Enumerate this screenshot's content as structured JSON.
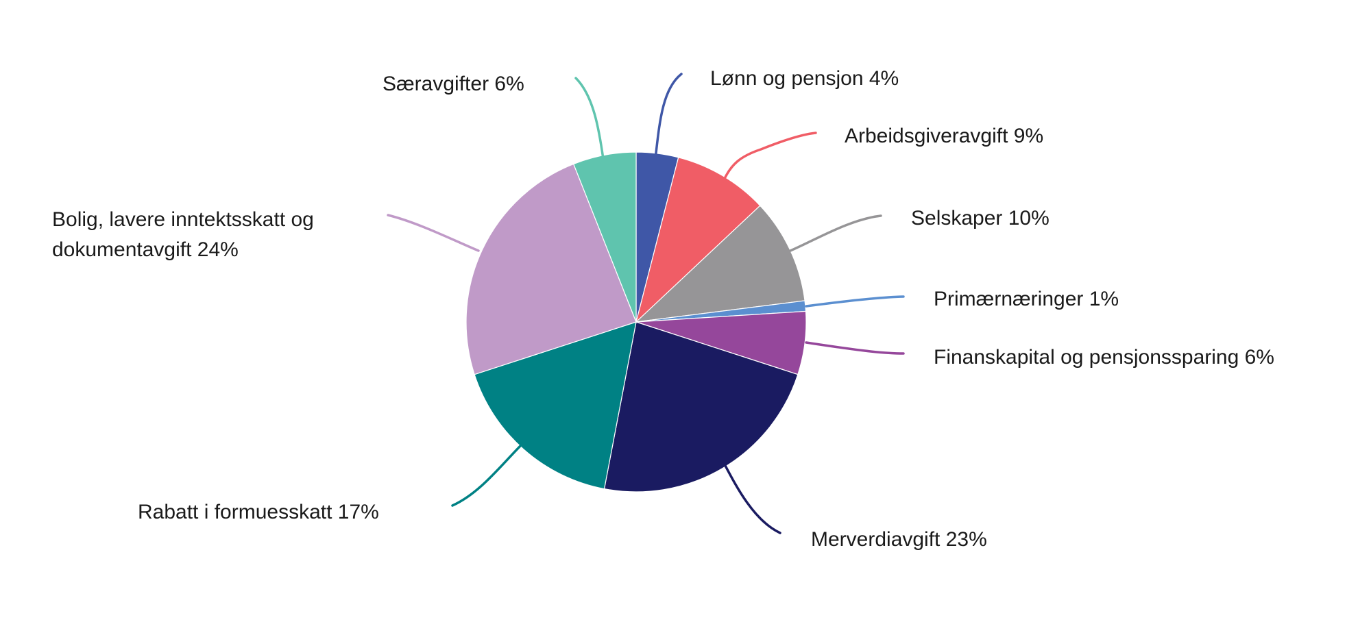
{
  "chart_data": {
    "type": "pie",
    "title": "",
    "start_angle_deg": 0,
    "direction": "clockwise",
    "legend": "none",
    "slices": [
      {
        "label": "Lønn og pensjon",
        "value": 4,
        "label_text": "Lønn og pensjon 4%",
        "color": "#3f57a7"
      },
      {
        "label": "Arbeidsgiveravgift",
        "value": 9,
        "label_text": "Arbeidsgiveravgift 9%",
        "color": "#f05d66"
      },
      {
        "label": "Selskaper",
        "value": 10,
        "label_text": "Selskaper 10%",
        "color": "#969597"
      },
      {
        "label": "Primærnæringer",
        "value": 1,
        "label_text": "Primærnæringer 1%",
        "color": "#5b8fd0"
      },
      {
        "label": "Finanskapital og pensjonssparing",
        "value": 6,
        "label_text": "Finanskapital og pensjonssparing 6%",
        "color": "#95479b"
      },
      {
        "label": "Merverdiavgift",
        "value": 23,
        "label_text": "Merverdiavgift 23%",
        "color": "#1a1b61"
      },
      {
        "label": "Rabatt i formuesskatt",
        "value": 17,
        "label_text": "Rabatt i formuesskatt 17%",
        "color": "#008184"
      },
      {
        "label": "Bolig, lavere inntektsskatt og dokumentavgift",
        "value": 24,
        "label_lines": [
          "Bolig, lavere inntektsskatt og",
          "dokumentavgift 24%"
        ],
        "color": "#c09ac8"
      },
      {
        "label": "Særavgifter",
        "value": 6,
        "label_text": "Særavgifter 6%",
        "color": "#5fc4ae"
      }
    ]
  }
}
